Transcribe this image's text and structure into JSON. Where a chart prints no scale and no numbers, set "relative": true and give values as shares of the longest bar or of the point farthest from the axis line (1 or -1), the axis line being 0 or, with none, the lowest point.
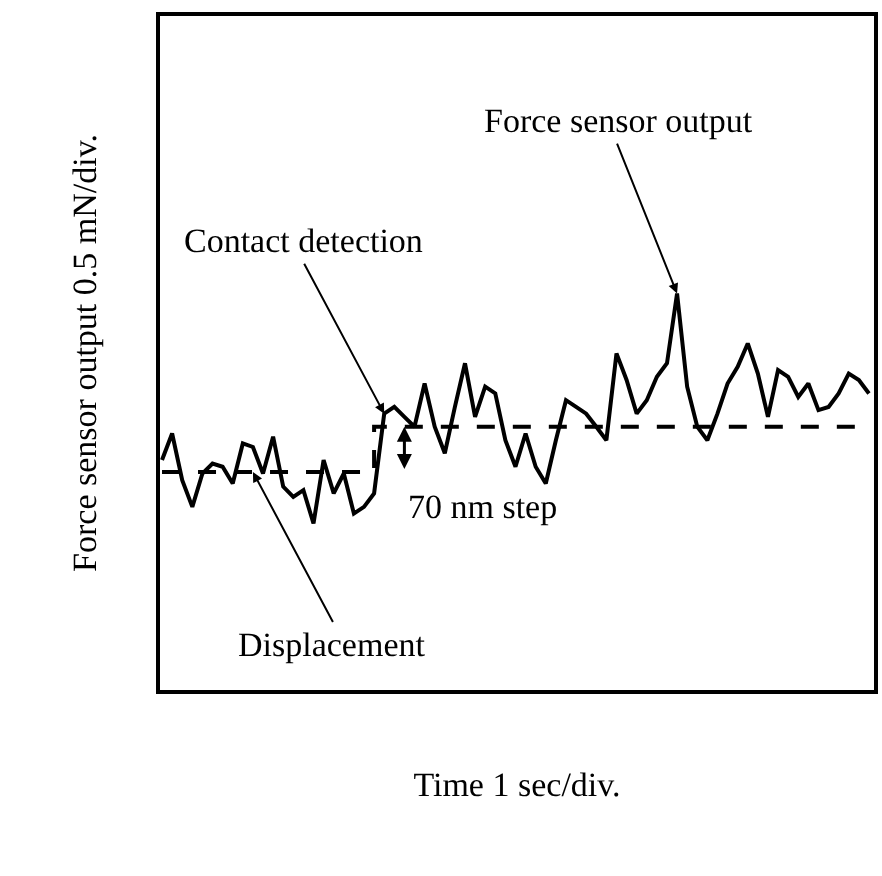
{
  "chart_data": {
    "type": "line",
    "relative": true,
    "xlabel": "Time 1 sec/div.",
    "ylabel": "Force sensor output 0.5 mN/div.",
    "categories": [
      null,
      null,
      null,
      null,
      null,
      null,
      null,
      null,
      null,
      null,
      null,
      null,
      null,
      null,
      null,
      null,
      null,
      null,
      null,
      null,
      null,
      null,
      null,
      null,
      null,
      null,
      null,
      null,
      null,
      null,
      null,
      null,
      null,
      null,
      null,
      null,
      null,
      null,
      null,
      null,
      null,
      null,
      null,
      null,
      null,
      null,
      null,
      null,
      null,
      null,
      null,
      null,
      null,
      null,
      null,
      null,
      null,
      null,
      null,
      null,
      null,
      null,
      null,
      null,
      null,
      null,
      null,
      null,
      null,
      null,
      null
    ],
    "series": [
      {
        "name": "Force sensor output",
        "color": "#000000",
        "line_style": "solid",
        "values": [
          0.58,
          0.647,
          0.529,
          0.462,
          0.546,
          0.571,
          0.563,
          0.521,
          0.622,
          0.613,
          0.546,
          0.639,
          0.513,
          0.487,
          0.504,
          0.42,
          0.58,
          0.496,
          0.546,
          0.445,
          0.462,
          0.496,
          0.697,
          0.714,
          0.689,
          0.664,
          0.773,
          0.664,
          0.597,
          0.714,
          0.824,
          0.689,
          0.765,
          0.748,
          0.63,
          0.563,
          0.647,
          0.563,
          0.521,
          0.63,
          0.731,
          0.714,
          0.697,
          0.664,
          0.63,
          0.849,
          0.782,
          0.697,
          0.731,
          0.79,
          0.824,
          1,
          0.765,
          0.664,
          0.63,
          0.697,
          0.773,
          0.815,
          0.874,
          0.798,
          0.689,
          0.807,
          0.79,
          0.739,
          0.773,
          0.706,
          0.714,
          0.748,
          0.798,
          0.782,
          0.748
        ]
      },
      {
        "name": "Displacement",
        "type": "step",
        "color": "#000000",
        "line_style": "dashed",
        "values": [
          0.55,
          0.55,
          0.55,
          0.55,
          0.55,
          0.55,
          0.55,
          0.55,
          0.55,
          0.55,
          0.55,
          0.55,
          0.55,
          0.55,
          0.55,
          0.55,
          0.55,
          0.55,
          0.55,
          0.55,
          0.55,
          0.664,
          0.664,
          0.664,
          0.664,
          0.664,
          0.664,
          0.664,
          0.664,
          0.664,
          0.664,
          0.664,
          0.664,
          0.664,
          0.664,
          0.664,
          0.664,
          0.664,
          0.664,
          0.664,
          0.664,
          0.664,
          0.664,
          0.664,
          0.664,
          0.664,
          0.664,
          0.664,
          0.664,
          0.664,
          0.664,
          0.664,
          0.664,
          0.664,
          0.664,
          0.664,
          0.664,
          0.664,
          0.664,
          0.664,
          0.664,
          0.664,
          0.664,
          0.664,
          0.664,
          0.664,
          0.664,
          0.664,
          0.664,
          0.664,
          0.664
        ]
      }
    ],
    "annotations": [
      "Contact detection",
      "70 nm step"
    ],
    "legend": false,
    "marker": "none",
    "tick_labels": false
  }
}
